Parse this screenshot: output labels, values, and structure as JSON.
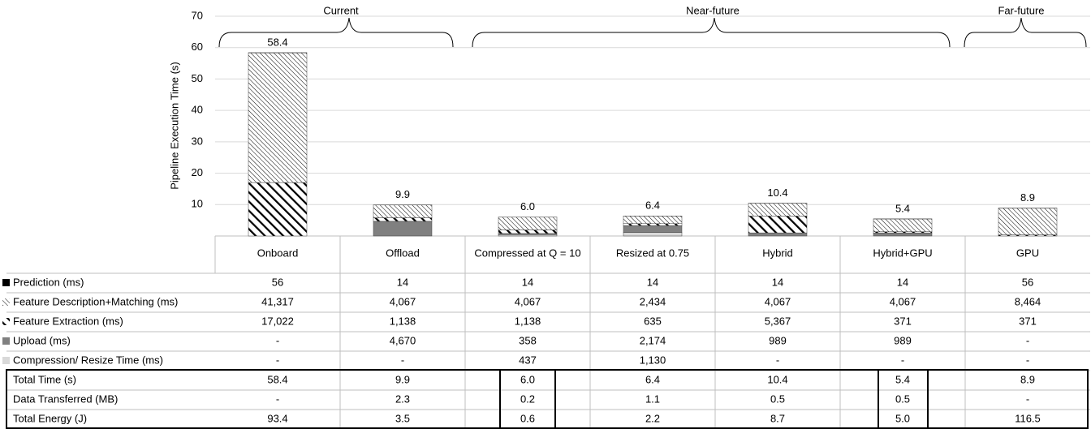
{
  "chart_data": {
    "type": "bar",
    "stacked": true,
    "y_label": "Pipeline Execution Time (s)",
    "groups": [
      "Current",
      "Near-future",
      "Far-future"
    ],
    "categories": [
      "Onboard",
      "Offload",
      "Compressed at Q = 10",
      "Resized at 0.75",
      "Hybrid",
      "Hybrid+GPU",
      "GPU"
    ],
    "ylim": [
      0,
      70
    ],
    "yticks": [
      10,
      20,
      30,
      40,
      50,
      60,
      70
    ],
    "grid": true,
    "series": [
      {
        "name": "Prediction (ms)",
        "color": "#000000",
        "pattern": "solid",
        "values": [
          0.056,
          0.014,
          0.014,
          0.014,
          0.014,
          0.014,
          0.056
        ],
        "value_labels": [
          "56",
          "14",
          "14",
          "14",
          "14",
          "14",
          "56"
        ]
      },
      {
        "name": "Feature Description+Matching (ms)",
        "color": "#000000",
        "pattern": "fine-hatch",
        "values": [
          41.317,
          4.067,
          4.067,
          2.434,
          4.067,
          4.067,
          8.464
        ],
        "value_labels": [
          "41,317",
          "4,067",
          "4,067",
          "2,434",
          "4,067",
          "4,067",
          "8,464"
        ]
      },
      {
        "name": "Feature Extraction (ms)",
        "color": "#000000",
        "pattern": "bold-hatch",
        "values": [
          17.022,
          1.138,
          1.138,
          0.635,
          5.367,
          0.371,
          0.371
        ],
        "value_labels": [
          "17,022",
          "1,138",
          "1,138",
          "635",
          "5,367",
          "371",
          "371"
        ]
      },
      {
        "name": "Upload (ms)",
        "color": "#808080",
        "pattern": "solid",
        "values": [
          null,
          4.67,
          0.358,
          2.174,
          0.989,
          0.989,
          null
        ],
        "value_labels": [
          "-",
          "4,670",
          "358",
          "2,174",
          "989",
          "989",
          "-"
        ]
      },
      {
        "name": "Compression/ Resize Time (ms)",
        "color": "#d9d9d9",
        "pattern": "solid",
        "values": [
          null,
          null,
          0.437,
          1.13,
          null,
          null,
          null
        ],
        "value_labels": [
          "-",
          "-",
          "437",
          "1,130",
          "-",
          "-",
          "-"
        ]
      }
    ],
    "summary_rows": [
      {
        "name": "Total Time (s)",
        "values": [
          "58.4",
          "9.9",
          "6.0",
          "6.4",
          "10.4",
          "5.4",
          "8.9"
        ]
      },
      {
        "name": "Data Transferred (MB)",
        "values": [
          "-",
          "2.3",
          "0.2",
          "1.1",
          "0.5",
          "0.5",
          "-"
        ]
      },
      {
        "name": "Total Energy (J)",
        "values": [
          "93.4",
          "3.5",
          "0.6",
          "2.2",
          "8.7",
          "5.0",
          "116.5"
        ]
      }
    ]
  }
}
